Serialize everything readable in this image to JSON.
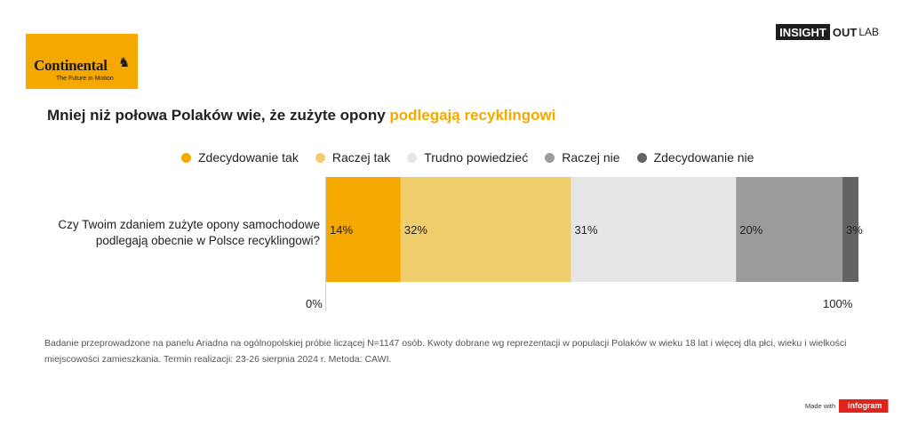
{
  "logo": {
    "brand": "Continental",
    "tagline": "The Future in Motion",
    "icon": "horse-icon"
  },
  "header_brand": {
    "part1": "INSIGHT",
    "part2": "OUT",
    "part3": "LAB"
  },
  "title": {
    "main": "Mniej niż połowa Polaków wie, że zużyte opony ",
    "highlight": "podlegają recyklingowi"
  },
  "legend": [
    {
      "label": "Zdecydowanie tak",
      "color": "#f5a800"
    },
    {
      "label": "Raczej tak",
      "color": "#f0cd6d"
    },
    {
      "label": "Trudno powiedzieć",
      "color": "#e6e6e6"
    },
    {
      "label": "Raczej nie",
      "color": "#9b9b9b"
    },
    {
      "label": "Zdecydowanie nie",
      "color": "#636363"
    }
  ],
  "question": "Czy Twoim zdaniem zużyte opony samochodowe podlegają obecnie w Polsce recyklingowi?",
  "chart_data": {
    "type": "bar",
    "orientation": "horizontal",
    "stacked": true,
    "categories": [
      "Czy Twoim zdaniem zużyte opony samochodowe podlegają obecnie w Polsce recyklingowi?"
    ],
    "series": [
      {
        "name": "Zdecydowanie tak",
        "values": [
          14
        ],
        "label": "14%",
        "color": "#f5a800"
      },
      {
        "name": "Raczej tak",
        "values": [
          32
        ],
        "label": "32%",
        "color": "#f0cd6d"
      },
      {
        "name": "Trudno powiedzieć",
        "values": [
          31
        ],
        "label": "31%",
        "color": "#e6e6e6"
      },
      {
        "name": "Raczej nie",
        "values": [
          20
        ],
        "label": "20%",
        "color": "#9b9b9b"
      },
      {
        "name": "Zdecydowanie nie",
        "values": [
          3
        ],
        "label": "3%",
        "color": "#636363"
      }
    ],
    "xlim": [
      0,
      100
    ],
    "x_tick_labels": [
      "0%",
      "100%"
    ],
    "legend_position": "top",
    "grid": false
  },
  "note": "Badanie przeprowadzone na panelu Ariadna na ogólnopolskiej próbie liczącej N=1147 osób. Kwoty dobrane wg reprezentacji w populacji Polaków w wieku 18 lat i więcej dla płci, wieku i wielkości miejscowości zamieszkania. Termin realizacji: 23-26 sierpnia 2024 r. Metoda: CAWI.",
  "footer": {
    "made_with": "Made with",
    "infogram": "infogram"
  }
}
